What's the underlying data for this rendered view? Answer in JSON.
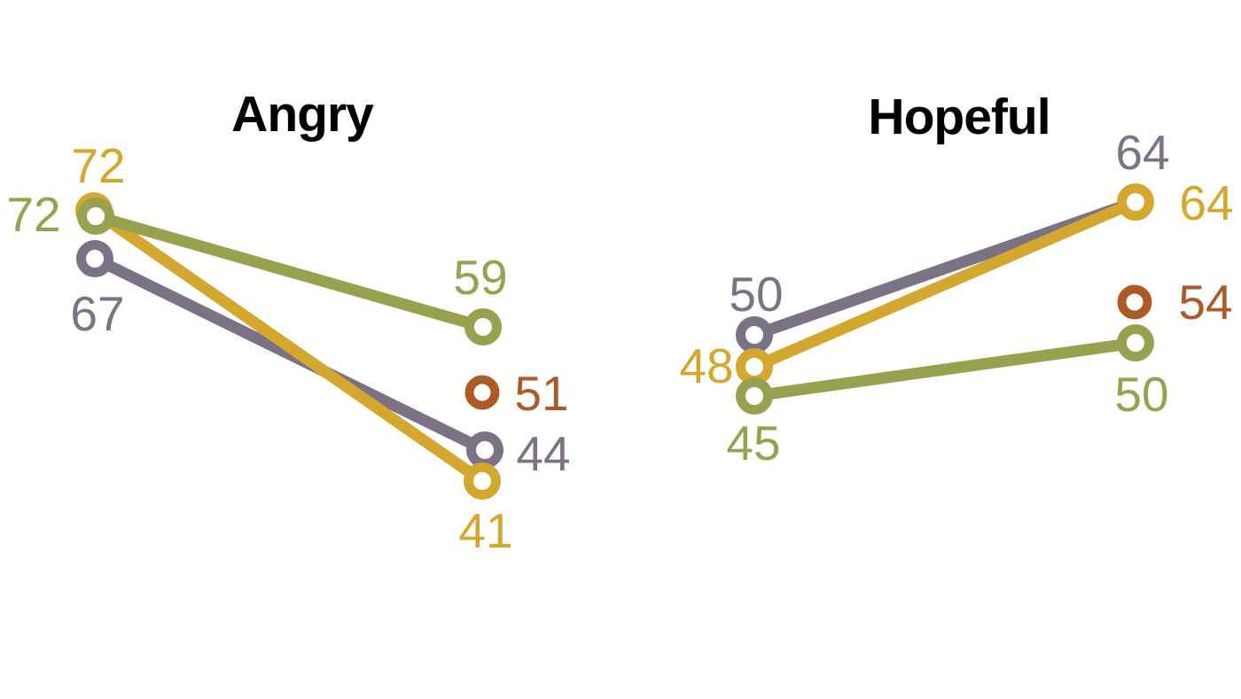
{
  "page": {
    "background_color": "#ffffff",
    "text_color": "#010101"
  },
  "chart_data": [
    {
      "type": "line",
      "subtype": "slope-chart",
      "title": "Angry",
      "x": [
        "start",
        "end"
      ],
      "ylim": [
        35,
        78
      ],
      "legend_position": "none",
      "grid": false,
      "series": [
        {
          "name": "purple-series",
          "color": "#7b7286",
          "values": [
            67,
            44
          ]
        },
        {
          "name": "gold-series",
          "color": "#d4a72f",
          "values": [
            72,
            41
          ]
        },
        {
          "name": "olive-series",
          "color": "#98a24e",
          "values": [
            72,
            59
          ]
        }
      ],
      "point_markers": [
        {
          "name": "rust-marker",
          "color": "#ad5a27",
          "value": 51,
          "position": "end"
        }
      ]
    },
    {
      "type": "line",
      "subtype": "slope-chart",
      "title": "Hopeful",
      "x": [
        "start",
        "end"
      ],
      "ylim": [
        35,
        78
      ],
      "legend_position": "none",
      "grid": false,
      "series": [
        {
          "name": "purple-series",
          "color": "#7b7286",
          "values": [
            50,
            64
          ]
        },
        {
          "name": "gold-series",
          "color": "#d4a72f",
          "values": [
            48,
            64
          ]
        },
        {
          "name": "olive-series",
          "color": "#98a24e",
          "values": [
            45,
            50
          ]
        }
      ],
      "point_markers": [
        {
          "name": "rust-marker",
          "color": "#ad5a27",
          "value": 54,
          "position": "end"
        }
      ]
    }
  ]
}
